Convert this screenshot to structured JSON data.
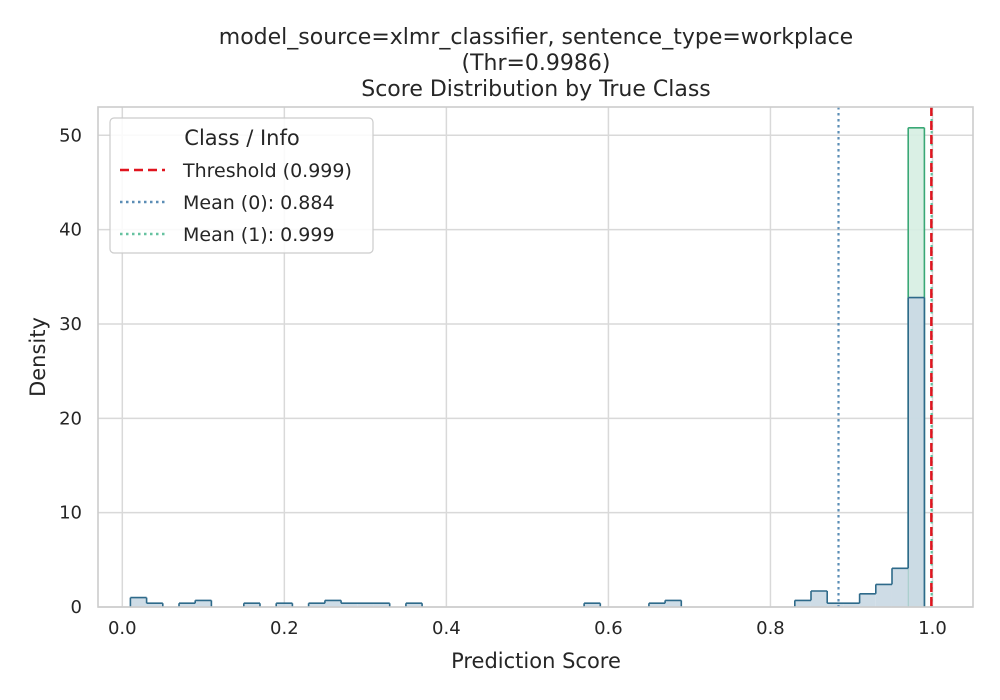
{
  "chart_data": {
    "type": "histogram",
    "title_lines": [
      "model_source=xlmr_classifier, sentence_type=workplace",
      "(Thr=0.9986)",
      "Score Distribution by True Class"
    ],
    "xlabel": "Prediction Score",
    "ylabel": "Density",
    "xlim": [
      -0.03,
      1.05
    ],
    "ylim": [
      0,
      53
    ],
    "x_ticks": [
      0.0,
      0.2,
      0.4,
      0.6,
      0.8,
      1.0
    ],
    "x_tick_labels": [
      "0.0",
      "0.2",
      "0.4",
      "0.6",
      "0.8",
      "1.0"
    ],
    "y_ticks": [
      0,
      10,
      20,
      30,
      40,
      50
    ],
    "y_tick_labels": [
      "0",
      "10",
      "20",
      "30",
      "40",
      "50"
    ],
    "grid": true,
    "bin_start": 0.01,
    "bin_width": 0.02,
    "series": [
      {
        "class": "0",
        "color": "#2e6a8a",
        "fill": "#c9d8e3",
        "densities": [
          1.0,
          0.4,
          0,
          0.4,
          0.7,
          0,
          0,
          0.4,
          0,
          0.4,
          0,
          0.4,
          0.7,
          0.4,
          0.4,
          0.4,
          0,
          0.4,
          0,
          0,
          0,
          0,
          0,
          0,
          0,
          0,
          0,
          0,
          0.4,
          0,
          0,
          0,
          0.4,
          0.7,
          0,
          0,
          0,
          0,
          0,
          0,
          0,
          0.7,
          1.7,
          0.4,
          0.4,
          1.4,
          2.4,
          4.1,
          32.8
        ]
      },
      {
        "class": "1",
        "color": "#3aa876",
        "fill": "#d6eee2",
        "densities": [
          0,
          0,
          0,
          0,
          0,
          0,
          0,
          0,
          0,
          0,
          0,
          0,
          0,
          0,
          0,
          0,
          0,
          0,
          0,
          0,
          0,
          0,
          0,
          0,
          0,
          0,
          0,
          0,
          0,
          0,
          0,
          0,
          0,
          0,
          0,
          0,
          0,
          0,
          0,
          0,
          0,
          0,
          0,
          0,
          0,
          0,
          0,
          0,
          50.8
        ]
      }
    ],
    "lines": [
      {
        "label": "Threshold (0.999)",
        "x": 0.9986,
        "color": "#e0141e",
        "style": "dashed"
      },
      {
        "label": "Mean (0): 0.884",
        "x": 0.884,
        "color": "#5b8db5",
        "style": "dotted"
      },
      {
        "label": "Mean (1): 0.999",
        "x": 0.999,
        "color": "#66c2a0",
        "style": "dotted"
      }
    ],
    "legend": {
      "title": "Class / Info",
      "placement": "upper-left"
    }
  }
}
